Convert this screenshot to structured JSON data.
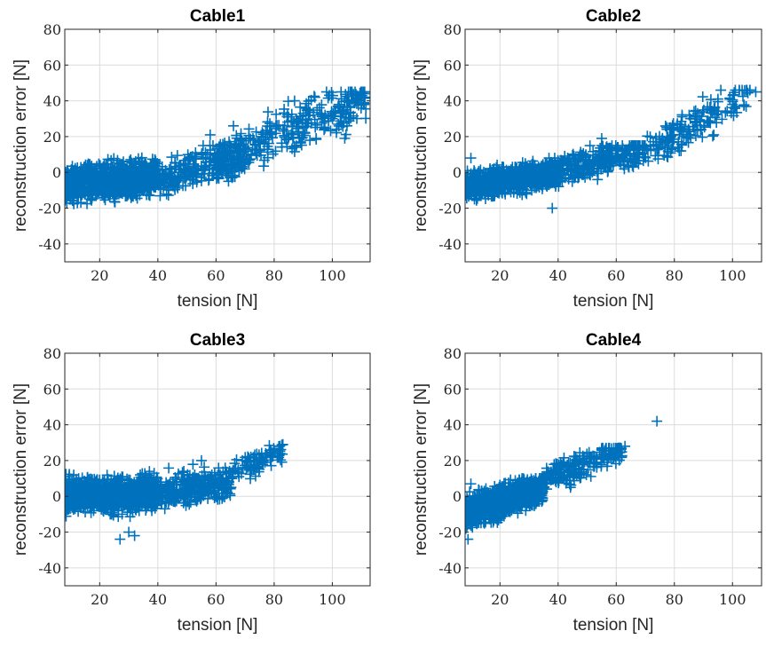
{
  "chart_data": [
    {
      "type": "scatter",
      "title": "Cable1",
      "xlabel": "tension [N]",
      "ylabel": "reconstruction error [N]",
      "xlim": [
        8,
        113
      ],
      "ylim": [
        -50,
        80
      ],
      "xticks": [
        20,
        40,
        60,
        80,
        100
      ],
      "yticks": [
        -40,
        -20,
        0,
        20,
        40,
        60,
        80
      ],
      "grid": true,
      "marker": "+",
      "color": "#0072bd",
      "clusters": [
        {
          "x": [
            8,
            40
          ],
          "y": [
            -22,
            12
          ],
          "count": 900,
          "trend": [
            0.18,
            -9
          ]
        },
        {
          "x": [
            40,
            70
          ],
          "y": [
            -20,
            15
          ],
          "count": 260,
          "trend": [
            0.45,
            -22
          ]
        },
        {
          "x": [
            60,
            112
          ],
          "y": [
            -5,
            45
          ],
          "count": 320,
          "trend": [
            0.72,
            -38
          ]
        }
      ],
      "points": [
        {
          "x": 98,
          "y": 45
        },
        {
          "x": 111,
          "y": 44
        },
        {
          "x": 94,
          "y": 42
        },
        {
          "x": 108,
          "y": 40
        },
        {
          "x": 66,
          "y": 26
        },
        {
          "x": 58,
          "y": 21
        },
        {
          "x": 104,
          "y": 35
        },
        {
          "x": 90,
          "y": 33
        }
      ]
    },
    {
      "type": "scatter",
      "title": "Cable2",
      "xlabel": "tension [N]",
      "ylabel": "reconstruction error [N]",
      "xlim": [
        8,
        110
      ],
      "ylim": [
        -50,
        80
      ],
      "xticks": [
        20,
        40,
        60,
        80,
        100
      ],
      "yticks": [
        -40,
        -20,
        0,
        20,
        40,
        60,
        80
      ],
      "grid": true,
      "marker": "+",
      "color": "#0072bd",
      "clusters": [
        {
          "x": [
            8,
            40
          ],
          "y": [
            -18,
            8
          ],
          "count": 850,
          "trend": [
            0.25,
            -10
          ]
        },
        {
          "x": [
            40,
            70
          ],
          "y": [
            -15,
            15
          ],
          "count": 300,
          "trend": [
            0.45,
            -18
          ]
        },
        {
          "x": [
            70,
            106
          ],
          "y": [
            5,
            46
          ],
          "count": 160,
          "trend": [
            0.95,
            -56
          ]
        }
      ],
      "points": [
        {
          "x": 106,
          "y": 46
        },
        {
          "x": 108,
          "y": 45
        },
        {
          "x": 95,
          "y": 41
        },
        {
          "x": 100,
          "y": 38
        },
        {
          "x": 88,
          "y": 33
        },
        {
          "x": 38,
          "y": -20
        },
        {
          "x": 55,
          "y": 19
        },
        {
          "x": 10,
          "y": 8
        }
      ]
    },
    {
      "type": "scatter",
      "title": "Cable3",
      "xlabel": "tension [N]",
      "ylabel": "reconstruction error [N]",
      "xlim": [
        8,
        113
      ],
      "ylim": [
        -50,
        80
      ],
      "xticks": [
        20,
        40,
        60,
        80,
        100
      ],
      "yticks": [
        -40,
        -20,
        0,
        20,
        40,
        60,
        80
      ],
      "grid": true,
      "marker": "+",
      "color": "#0072bd",
      "clusters": [
        {
          "x": [
            8,
            40
          ],
          "y": [
            -15,
            18
          ],
          "count": 950,
          "trend": [
            0.05,
            0
          ]
        },
        {
          "x": [
            40,
            65
          ],
          "y": [
            -12,
            20
          ],
          "count": 280,
          "trend": [
            0.25,
            -8
          ]
        },
        {
          "x": [
            65,
            83
          ],
          "y": [
            5,
            29
          ],
          "count": 90,
          "trend": [
            0.8,
            -40
          ]
        }
      ],
      "points": [
        {
          "x": 83,
          "y": 29
        },
        {
          "x": 80,
          "y": 26
        },
        {
          "x": 27,
          "y": -24
        },
        {
          "x": 32,
          "y": -22
        },
        {
          "x": 30,
          "y": -20
        },
        {
          "x": 55,
          "y": 20
        },
        {
          "x": 72,
          "y": 22
        },
        {
          "x": 76,
          "y": 20
        }
      ]
    },
    {
      "type": "scatter",
      "title": "Cable4",
      "xlabel": "tension [N]",
      "ylabel": "reconstruction error [N]",
      "xlim": [
        8,
        110
      ],
      "ylim": [
        -50,
        80
      ],
      "xticks": [
        20,
        40,
        60,
        80,
        100
      ],
      "yticks": [
        -40,
        -20,
        0,
        20,
        40,
        60,
        80
      ],
      "grid": true,
      "marker": "+",
      "color": "#0072bd",
      "clusters": [
        {
          "x": [
            8,
            35
          ],
          "y": [
            -20,
            10
          ],
          "count": 900,
          "trend": [
            0.55,
            -14
          ]
        },
        {
          "x": [
            35,
            62
          ],
          "y": [
            0,
            27
          ],
          "count": 220,
          "trend": [
            0.62,
            -12
          ]
        }
      ],
      "points": [
        {
          "x": 74,
          "y": 42
        },
        {
          "x": 63,
          "y": 28
        },
        {
          "x": 9,
          "y": -24
        },
        {
          "x": 10,
          "y": 7
        },
        {
          "x": 58,
          "y": 24
        },
        {
          "x": 55,
          "y": 22
        }
      ]
    }
  ]
}
